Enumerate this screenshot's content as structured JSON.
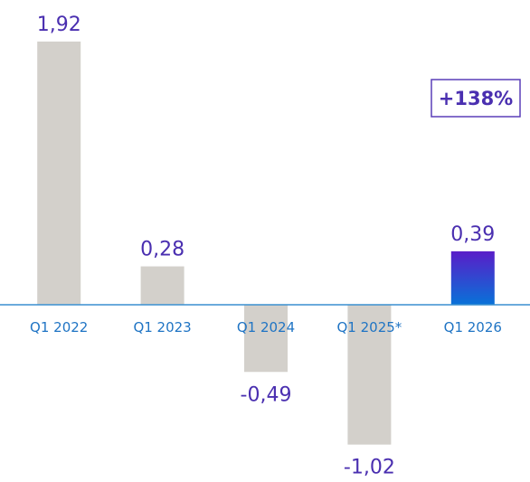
{
  "chart_data": {
    "type": "bar",
    "categories": [
      "Q1 2022",
      "Q1 2023",
      "Q1 2024",
      "Q1 2025*",
      "Q1 2026"
    ],
    "values": [
      1.92,
      0.28,
      -0.49,
      -1.02,
      0.39
    ],
    "value_labels": [
      "1,92",
      "0,28",
      "-0,49",
      "-1,02",
      "0,39"
    ],
    "colors": [
      "#d3d0cb",
      "#d3d0cb",
      "#d3d0cb",
      "#d3d0cb",
      [
        "#5a1dc8",
        "#0872d8"
      ]
    ],
    "annotation": "+138%"
  }
}
